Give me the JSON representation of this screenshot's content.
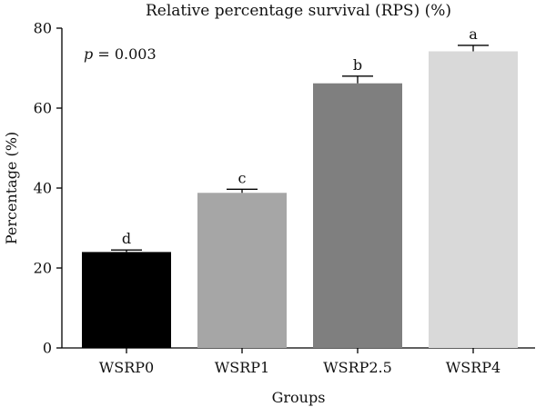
{
  "chart_data": {
    "type": "bar",
    "title": "Relative percentage survival (RPS) (%)",
    "xlabel": "Groups",
    "ylabel": "Percentage (%)",
    "ylim": [
      0,
      80
    ],
    "yticks": [
      0,
      20,
      40,
      60,
      80
    ],
    "categories": [
      "WSRP0",
      "WSRP1",
      "WSRP2.5",
      "WSRP4"
    ],
    "values": [
      24,
      38.8,
      66.2,
      74.2
    ],
    "errors": [
      0.5,
      0.9,
      1.8,
      1.5
    ],
    "significance_letters": [
      "d",
      "c",
      "b",
      "a"
    ],
    "bar_colors": [
      "#000000",
      "#a6a6a6",
      "#7f7f7f",
      "#d9d9d9"
    ],
    "annotation": {
      "p_symbol": "p",
      "p_text": " = 0.003"
    },
    "grid": false,
    "legend": "none"
  }
}
